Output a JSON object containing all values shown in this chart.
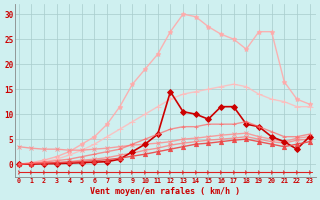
{
  "background_color": "#cff0f0",
  "grid_color": "#a8cccc",
  "xlabel": "Vent moyen/en rafales ( km/h )",
  "ylim": [
    -2.5,
    32
  ],
  "xlim": [
    -0.3,
    23.5
  ],
  "yticks": [
    0,
    5,
    10,
    15,
    20,
    25,
    30
  ],
  "x_ticks": [
    0,
    1,
    2,
    3,
    4,
    5,
    6,
    7,
    8,
    9,
    10,
    11,
    12,
    13,
    14,
    15,
    16,
    17,
    18,
    19,
    20,
    21,
    22,
    23
  ],
  "lines": [
    {
      "color": "#dd2222",
      "alpha": 1.0,
      "linewidth": 0.8,
      "marker": "4",
      "markersize": 3.5,
      "markevery": 1,
      "x": [
        0,
        1,
        2,
        3,
        4,
        5,
        6,
        7,
        8,
        9,
        10,
        11,
        12,
        13,
        14,
        15,
        16,
        17,
        18,
        19,
        20,
        21,
        22,
        23
      ],
      "y": [
        -1.5,
        -1.5,
        -1.5,
        -1.5,
        -1.5,
        -1.5,
        -1.5,
        -1.5,
        -1.5,
        -1.5,
        -1.5,
        -1.5,
        -1.5,
        -1.5,
        -1.5,
        -1.5,
        -1.5,
        -1.5,
        -1.5,
        -1.5,
        -1.5,
        -1.5,
        -1.5,
        -1.5
      ]
    },
    {
      "color": "#ffaaaa",
      "alpha": 0.9,
      "linewidth": 1.0,
      "marker": "*",
      "markersize": 3.5,
      "markevery": 1,
      "x": [
        0,
        1,
        2,
        3,
        4,
        5,
        6,
        7,
        8,
        9,
        10,
        11,
        12,
        13,
        14,
        15,
        16,
        17,
        18,
        19,
        20,
        21,
        22,
        23
      ],
      "y": [
        0,
        0.3,
        0.8,
        1.5,
        2.5,
        4.0,
        5.5,
        8.0,
        11.5,
        16.0,
        19.0,
        22.0,
        26.5,
        30.0,
        29.5,
        27.5,
        26.0,
        25.0,
        23.0,
        26.5,
        26.5,
        16.5,
        13.0,
        12.0
      ]
    },
    {
      "color": "#ffbbbb",
      "alpha": 0.85,
      "linewidth": 1.0,
      "marker": "+",
      "markersize": 4,
      "markevery": 1,
      "x": [
        0,
        1,
        2,
        3,
        4,
        5,
        6,
        7,
        8,
        9,
        10,
        11,
        12,
        13,
        14,
        15,
        16,
        17,
        18,
        19,
        20,
        21,
        22,
        23
      ],
      "y": [
        0,
        0.2,
        0.5,
        1.0,
        1.8,
        2.8,
        4.0,
        5.5,
        7.0,
        8.5,
        10.0,
        11.5,
        13.0,
        14.0,
        14.5,
        15.0,
        15.5,
        16.0,
        15.5,
        14.0,
        13.0,
        12.5,
        11.5,
        11.5
      ]
    },
    {
      "color": "#ff8888",
      "alpha": 0.8,
      "linewidth": 1.0,
      "marker": "x",
      "markersize": 3,
      "markevery": 1,
      "x": [
        0,
        1,
        2,
        3,
        4,
        5,
        6,
        7,
        8,
        9,
        10,
        11,
        12,
        13,
        14,
        15,
        16,
        17,
        18,
        19,
        20,
        21,
        22,
        23
      ],
      "y": [
        3.5,
        3.2,
        3.0,
        3.0,
        2.8,
        2.8,
        3.0,
        3.2,
        3.5,
        3.8,
        4.0,
        4.2,
        4.5,
        5.0,
        5.2,
        5.5,
        5.8,
        6.0,
        6.2,
        5.5,
        5.0,
        4.5,
        5.2,
        5.5
      ]
    },
    {
      "color": "#ff7777",
      "alpha": 0.75,
      "linewidth": 1.0,
      "marker": "x",
      "markersize": 3,
      "markevery": 1,
      "x": [
        0,
        1,
        2,
        3,
        4,
        5,
        6,
        7,
        8,
        9,
        10,
        11,
        12,
        13,
        14,
        15,
        16,
        17,
        18,
        19,
        20,
        21,
        22,
        23
      ],
      "y": [
        0,
        0.1,
        0.2,
        0.3,
        0.5,
        0.8,
        1.0,
        1.3,
        1.8,
        2.2,
        2.8,
        3.2,
        3.8,
        4.2,
        4.5,
        4.8,
        5.0,
        5.2,
        5.5,
        5.0,
        4.5,
        4.2,
        4.8,
        5.0
      ]
    },
    {
      "color": "#cc0000",
      "alpha": 1.0,
      "linewidth": 1.2,
      "marker": "D",
      "markersize": 3,
      "markevery": 1,
      "x": [
        0,
        1,
        2,
        3,
        4,
        5,
        6,
        7,
        8,
        9,
        10,
        11,
        12,
        13,
        14,
        15,
        16,
        17,
        18,
        19,
        20,
        21,
        22,
        23
      ],
      "y": [
        0,
        0.0,
        0.1,
        0.1,
        0.2,
        0.3,
        0.4,
        0.5,
        1.0,
        2.5,
        4.0,
        6.0,
        14.5,
        10.5,
        10.0,
        9.0,
        11.5,
        11.5,
        8.0,
        7.5,
        5.5,
        4.5,
        3.0,
        5.5
      ]
    },
    {
      "color": "#ee4444",
      "alpha": 0.9,
      "linewidth": 1.0,
      "marker": "^",
      "markersize": 3,
      "markevery": 1,
      "x": [
        0,
        1,
        2,
        3,
        4,
        5,
        6,
        7,
        8,
        9,
        10,
        11,
        12,
        13,
        14,
        15,
        16,
        17,
        18,
        19,
        20,
        21,
        22,
        23
      ],
      "y": [
        0,
        0.1,
        0.2,
        0.3,
        0.4,
        0.5,
        0.7,
        0.9,
        1.2,
        1.6,
        2.0,
        2.5,
        3.0,
        3.5,
        4.0,
        4.2,
        4.5,
        4.8,
        5.0,
        4.5,
        4.0,
        3.5,
        4.0,
        4.5
      ]
    },
    {
      "color": "#ff6666",
      "alpha": 0.7,
      "linewidth": 1.0,
      "marker": "+",
      "markersize": 3.5,
      "markevery": 1,
      "x": [
        0,
        1,
        2,
        3,
        4,
        5,
        6,
        7,
        8,
        9,
        10,
        11,
        12,
        13,
        14,
        15,
        16,
        17,
        18,
        19,
        20,
        21,
        22,
        23
      ],
      "y": [
        0,
        0.2,
        0.4,
        0.7,
        1.0,
        1.5,
        2.0,
        2.5,
        3.0,
        4.0,
        5.0,
        6.0,
        7.0,
        7.5,
        7.5,
        8.0,
        8.0,
        8.0,
        8.5,
        7.5,
        6.5,
        5.5,
        5.5,
        6.0
      ]
    }
  ]
}
